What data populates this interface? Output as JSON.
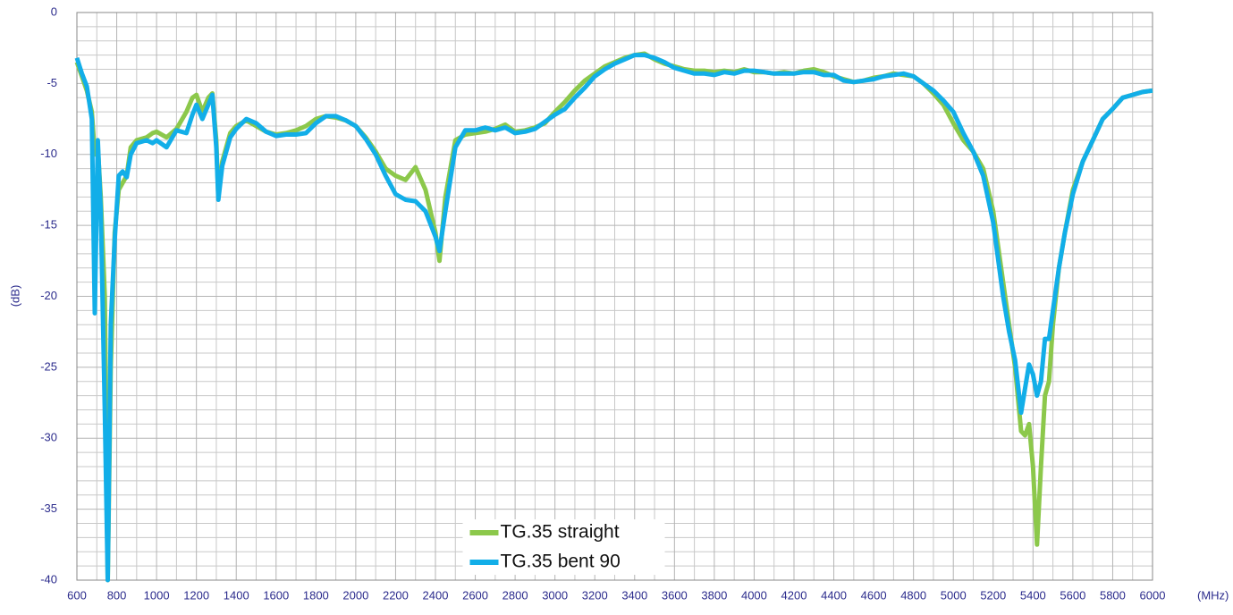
{
  "chart_data": {
    "type": "line",
    "x_label": "(MHz)",
    "y_label": "(dB)",
    "x": [
      600,
      625,
      650,
      675,
      690,
      705,
      720,
      740,
      755,
      770,
      790,
      810,
      830,
      850,
      870,
      900,
      950,
      980,
      1000,
      1050,
      1100,
      1150,
      1180,
      1200,
      1230,
      1260,
      1280,
      1300,
      1310,
      1330,
      1370,
      1400,
      1450,
      1500,
      1550,
      1600,
      1650,
      1700,
      1750,
      1800,
      1850,
      1900,
      1950,
      2000,
      2050,
      2100,
      2150,
      2200,
      2250,
      2300,
      2350,
      2400,
      2420,
      2450,
      2500,
      2550,
      2600,
      2650,
      2700,
      2750,
      2800,
      2850,
      2900,
      2950,
      3000,
      3050,
      3100,
      3150,
      3200,
      3250,
      3300,
      3350,
      3400,
      3450,
      3500,
      3550,
      3600,
      3650,
      3700,
      3750,
      3800,
      3850,
      3900,
      3950,
      4000,
      4050,
      4100,
      4150,
      4200,
      4250,
      4300,
      4350,
      4400,
      4450,
      4500,
      4550,
      4600,
      4650,
      4700,
      4750,
      4800,
      4850,
      4900,
      4950,
      5000,
      5050,
      5100,
      5150,
      5200,
      5250,
      5280,
      5310,
      5340,
      5360,
      5380,
      5400,
      5420,
      5440,
      5460,
      5480,
      5500,
      5530,
      5560,
      5600,
      5650,
      5700,
      5750,
      5800,
      5850,
      5900,
      5950,
      6000
    ],
    "series": [
      {
        "name": "TG.35 straight",
        "color": "#8cc84b",
        "values": [
          -3.5,
          -4.5,
          -5.5,
          -7,
          -10,
          -9.5,
          -13,
          -20,
          -40,
          -25,
          -15.5,
          -12.5,
          -12,
          -11.5,
          -9.5,
          -9,
          -8.8,
          -8.5,
          -8.4,
          -8.8,
          -8.2,
          -7,
          -6,
          -5.8,
          -7,
          -6,
          -5.7,
          -9,
          -13,
          -10.5,
          -8.5,
          -8,
          -7.6,
          -8,
          -8.4,
          -8.6,
          -8.5,
          -8.3,
          -8,
          -7.5,
          -7.3,
          -7.4,
          -7.6,
          -8,
          -8.8,
          -9.8,
          -11,
          -11.5,
          -11.8,
          -10.9,
          -12.5,
          -15.5,
          -17.5,
          -13,
          -9,
          -8.6,
          -8.5,
          -8.4,
          -8.2,
          -7.9,
          -8.4,
          -8.3,
          -8.1,
          -7.8,
          -7,
          -6.3,
          -5.5,
          -4.8,
          -4.3,
          -3.8,
          -3.5,
          -3.2,
          -3,
          -2.9,
          -3.3,
          -3.6,
          -3.8,
          -4,
          -4.1,
          -4.1,
          -4.2,
          -4.1,
          -4.2,
          -4,
          -4.2,
          -4.2,
          -4.3,
          -4.2,
          -4.3,
          -4.1,
          -4,
          -4.2,
          -4.5,
          -4.7,
          -4.9,
          -4.8,
          -4.6,
          -4.5,
          -4.3,
          -4.4,
          -4.5,
          -5,
          -5.7,
          -6.5,
          -7.8,
          -9,
          -9.8,
          -11,
          -14,
          -19,
          -22,
          -25,
          -29.5,
          -29.8,
          -29,
          -32,
          -37.5,
          -32,
          -27,
          -26,
          -22,
          -18,
          -15.5,
          -12.5,
          -10.5,
          -9,
          -7.5,
          -6.8,
          -6,
          -5.8,
          -5.6,
          -5.5
        ]
      },
      {
        "name": "TG.35 bent 90",
        "color": "#12aee8",
        "values": [
          -3.2,
          -4.3,
          -5.2,
          -7.5,
          -21.2,
          -9,
          -14,
          -28,
          -40,
          -22,
          -16,
          -11.5,
          -11.2,
          -11.6,
          -10,
          -9.2,
          -9,
          -9.2,
          -9,
          -9.5,
          -8.3,
          -8.5,
          -7.2,
          -6.5,
          -7.5,
          -6.5,
          -5.8,
          -9.5,
          -13.2,
          -10.8,
          -8.8,
          -8.2,
          -7.5,
          -7.8,
          -8.4,
          -8.7,
          -8.6,
          -8.6,
          -8.5,
          -7.8,
          -7.3,
          -7.3,
          -7.6,
          -8,
          -8.9,
          -10,
          -11.5,
          -12.8,
          -13.2,
          -13.3,
          -14,
          -15.8,
          -16.8,
          -14,
          -9.5,
          -8.3,
          -8.3,
          -8.1,
          -8.3,
          -8.1,
          -8.5,
          -8.4,
          -8.2,
          -7.7,
          -7.2,
          -6.8,
          -6,
          -5.3,
          -4.5,
          -4,
          -3.6,
          -3.3,
          -3,
          -3,
          -3.2,
          -3.5,
          -3.9,
          -4.1,
          -4.3,
          -4.3,
          -4.4,
          -4.2,
          -4.3,
          -4.1,
          -4.1,
          -4.2,
          -4.3,
          -4.3,
          -4.3,
          -4.2,
          -4.2,
          -4.4,
          -4.4,
          -4.8,
          -4.9,
          -4.8,
          -4.7,
          -4.5,
          -4.4,
          -4.3,
          -4.5,
          -5,
          -5.5,
          -6.2,
          -7,
          -8.5,
          -9.8,
          -11.5,
          -14.8,
          -20,
          -22.5,
          -24.5,
          -28.2,
          -26.5,
          -24.8,
          -25.5,
          -27,
          -26,
          -23,
          -23,
          -21,
          -18,
          -15.5,
          -12.8,
          -10.5,
          -9,
          -7.5,
          -6.8,
          -6,
          -5.8,
          -5.6,
          -5.5
        ]
      }
    ],
    "xlim": [
      600,
      6000
    ],
    "xticks": [
      600,
      800,
      1000,
      1200,
      1400,
      1600,
      1800,
      2000,
      2200,
      2400,
      2600,
      2800,
      3000,
      3200,
      3400,
      3600,
      3800,
      4000,
      4200,
      4400,
      4600,
      4800,
      5000,
      5200,
      5400,
      5600,
      5800,
      6000
    ],
    "ylim": [
      -40,
      0
    ],
    "yticks": [
      0,
      -5,
      -10,
      -15,
      -20,
      -25,
      -30,
      -35,
      -40
    ],
    "grid": true,
    "x_grid_subdivisions": 2,
    "y_grid_subdivisions": 5,
    "legend": "lower center"
  }
}
